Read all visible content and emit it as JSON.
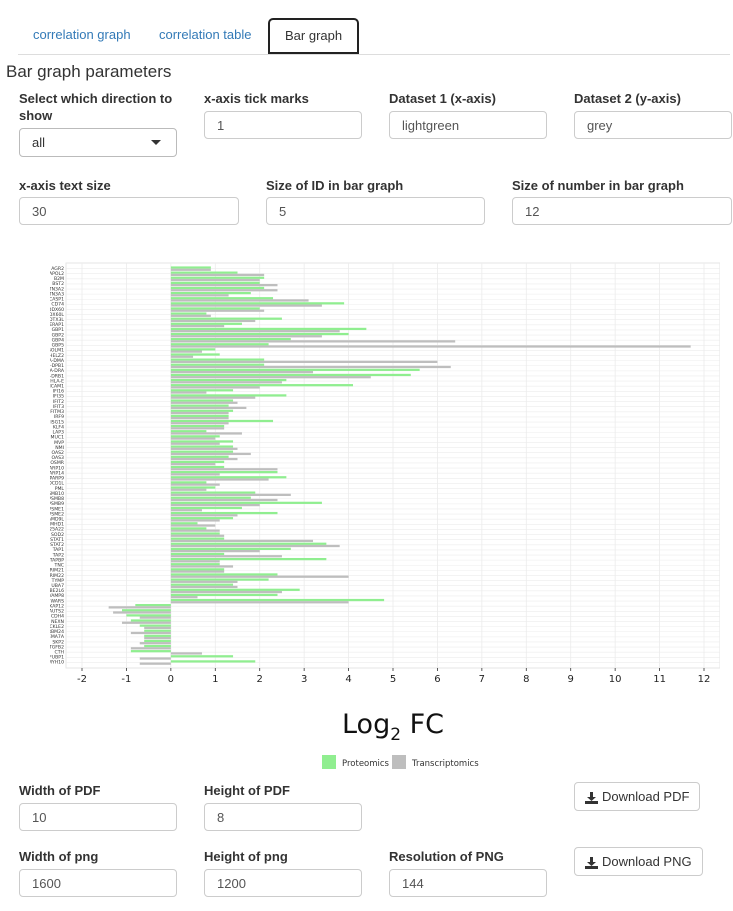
{
  "tabs": [
    "correlation graph",
    "correlation table",
    "Bar graph"
  ],
  "section_title": "Bar graph parameters",
  "params": {
    "direction_label": "Select which direction to show",
    "direction_value": "all",
    "xtick_label": "x-axis tick marks",
    "xtick_value": "1",
    "ds1_label": "Dataset 1 (x-axis)",
    "ds1_value": "lightgreen",
    "ds2_label": "Dataset 2 (y-axis)",
    "ds2_value": "grey",
    "xtext_label": "x-axis text size",
    "xtext_value": "30",
    "idsize_label": "Size of ID in bar graph",
    "idsize_value": "5",
    "numsize_label": "Size of number in bar graph",
    "numsize_value": "12"
  },
  "download": {
    "pdf_width_label": "Width of PDF",
    "pdf_width_value": "10",
    "pdf_height_label": "Height of PDF",
    "pdf_height_value": "8",
    "png_width_label": "Width of png",
    "png_width_value": "1600",
    "png_height_label": "Height of png",
    "png_height_value": "1200",
    "png_res_label": "Resolution of PNG",
    "png_res_value": "144",
    "pdf_button": "Download PDF",
    "png_button": "Download PNG",
    "icon": "download-icon"
  },
  "chart_data": {
    "type": "bar",
    "orientation": "horizontal",
    "xlabel": "Log2 FC",
    "xlim": [
      -2,
      12
    ],
    "xticks": [
      -2,
      -1,
      0,
      1,
      2,
      3,
      4,
      5,
      6,
      7,
      8,
      9,
      10,
      11,
      12
    ],
    "grid": true,
    "legend_position": "bottom",
    "categories": [
      "AGR2",
      "APOL2",
      "B2M",
      "BST2",
      "BTN3A2",
      "BTN3A3",
      "CASP1",
      "CD74",
      "DDX60",
      "DDX60L",
      "DTX3L",
      "ERAP1",
      "GBP1",
      "GBP2",
      "GBP4",
      "GBP5",
      "GOLM1",
      "HELZ2",
      "HLA-DMA",
      "HLA-DPB1",
      "HLA-DRA",
      "HLA-DRB1",
      "HLA-E",
      "ICAM1",
      "IFI16",
      "IFI35",
      "IFIT2",
      "IFIT3",
      "IFITM3",
      "IRF9",
      "ISG15",
      "KLF4",
      "LAP3",
      "MUC1",
      "MVP",
      "NMI",
      "OAS2",
      "OAS3",
      "OSMR",
      "PARP10",
      "PARP14",
      "PARP9",
      "PDCD1L",
      "PML",
      "PSMB10",
      "PSMB8",
      "PSMB9",
      "PSME1",
      "PSME2",
      "SAMD9L",
      "SAMHD1",
      "SLC25A22",
      "SOD2",
      "STAT1",
      "STAT2",
      "TAP1",
      "TAP2",
      "TAPBP",
      "TNC",
      "TRIM21",
      "TRIM22",
      "TYMP",
      "UBA7",
      "UBE2L6",
      "VAMP8",
      "WARS",
      "AKAP12",
      "AUTS2",
      "CDH4",
      "NEXN",
      "PRICKLE2",
      "RBM24",
      "SEMA7A",
      "SKP2",
      "TGFB2",
      "CTH",
      "FUBP1",
      "MYH10"
    ],
    "series": [
      {
        "name": "Proteomics",
        "color": "#90ee90",
        "values": [
          0.9,
          1.5,
          2.1,
          2.0,
          2.1,
          1.8,
          2.3,
          3.9,
          2.0,
          0.8,
          2.5,
          1.6,
          4.4,
          4.0,
          2.7,
          2.2,
          1.0,
          1.1,
          2.1,
          2.1,
          5.6,
          5.4,
          2.6,
          4.1,
          1.4,
          2.6,
          1.4,
          1.3,
          1.4,
          1.3,
          2.3,
          1.2,
          0.8,
          1.1,
          1.4,
          1.4,
          1.4,
          1.3,
          1.2,
          1.2,
          2.4,
          2.6,
          0.8,
          1.0,
          1.9,
          1.8,
          3.4,
          1.6,
          2.4,
          1.4,
          0.6,
          0.8,
          1.1,
          1.2,
          3.5,
          2.7,
          1.2,
          3.5,
          1.1,
          1.2,
          2.4,
          2.2,
          1.4,
          2.9,
          2.4,
          4.8,
          -0.8,
          -1.1,
          -1.0,
          -0.9,
          -0.7,
          -0.6,
          -0.6,
          -0.6,
          -0.6,
          -0.9,
          1.4,
          1.9
        ]
      },
      {
        "name": "Transcriptomics",
        "color": "#bebebe",
        "values": [
          0.9,
          2.1,
          2.0,
          2.4,
          2.4,
          1.3,
          3.1,
          3.4,
          2.1,
          0.9,
          1.9,
          1.2,
          3.8,
          3.4,
          6.4,
          11.7,
          0.7,
          0.5,
          6.0,
          6.3,
          3.2,
          4.5,
          2.5,
          2.0,
          0.8,
          1.9,
          1.5,
          1.7,
          1.3,
          1.3,
          1.3,
          1.2,
          1.6,
          1.0,
          1.1,
          1.5,
          1.8,
          1.5,
          1.0,
          2.4,
          1.1,
          2.2,
          1.1,
          0.8,
          2.7,
          2.4,
          2.0,
          0.7,
          1.5,
          1.1,
          1.0,
          1.1,
          1.2,
          3.2,
          3.8,
          2.0,
          2.5,
          1.1,
          1.4,
          1.2,
          4.0,
          1.5,
          1.5,
          2.5,
          0.6,
          4.0,
          -1.4,
          -1.3,
          -0.7,
          -1.1,
          -0.6,
          -0.9,
          -0.6,
          -0.7,
          -0.9,
          0.7,
          -0.7,
          -0.7
        ]
      }
    ]
  }
}
